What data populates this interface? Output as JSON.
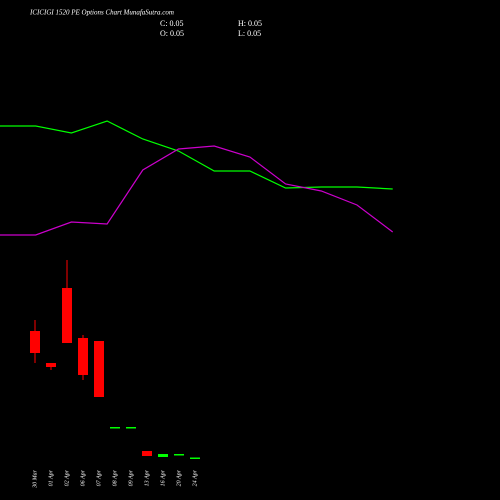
{
  "chart_data": [
    {
      "type": "candlestick",
      "title": "ICICIGI 1520 PE Options  Chart MunafaSutra.com",
      "annotations": [
        "C: 0.05",
        "H: 0.05",
        "O: 0.05",
        "L: 0.05"
      ],
      "categories": [
        "30 Mar",
        "01 Apr",
        "02 Apr",
        "06 Apr",
        "07 Apr",
        "08 Apr",
        "09 Apr",
        "13 Apr",
        "16 Apr",
        "20 Apr",
        "24 Apr"
      ],
      "open": [
        2.58,
        1.94,
        3.44,
        2.44,
        2.38,
        0.66,
        0.66,
        0.18,
        0.06,
        0.12,
        0.05
      ],
      "high": [
        2.8,
        1.94,
        4.0,
        2.5,
        2.38,
        0.66,
        0.66,
        0.18,
        0.12,
        0.12,
        0.05
      ],
      "low": [
        1.94,
        1.8,
        2.34,
        1.6,
        1.26,
        0.66,
        0.66,
        0.08,
        0.06,
        0.12,
        0.05
      ],
      "close": [
        2.14,
        1.86,
        2.34,
        1.7,
        1.26,
        0.66,
        0.66,
        0.08,
        0.12,
        0.12,
        0.05
      ],
      "up_color": "#00ff00",
      "down_color": "#ff0000",
      "ylim": [
        0,
        4
      ]
    },
    {
      "type": "line",
      "series": [
        {
          "color": "#00ff00",
          "values": [
            124,
            124,
            117,
            129,
            111,
            99,
            79,
            79,
            62,
            63,
            63,
            61
          ]
        },
        {
          "color": "#cc00cc",
          "values": [
            15,
            15,
            28,
            26,
            80,
            101,
            104,
            93,
            66,
            59,
            45,
            18
          ]
        }
      ],
      "ylim": [
        0,
        150
      ]
    }
  ]
}
